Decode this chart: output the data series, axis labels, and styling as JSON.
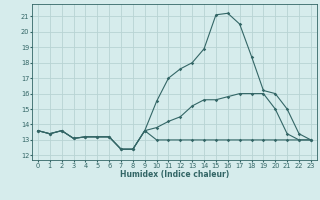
{
  "title": "",
  "xlabel": "Humidex (Indice chaleur)",
  "ylabel": "",
  "background_color": "#d6ecec",
  "grid_color": "#b8d4d4",
  "line_color": "#336666",
  "xlim": [
    -0.5,
    23.5
  ],
  "ylim": [
    11.7,
    21.8
  ],
  "yticks": [
    12,
    13,
    14,
    15,
    16,
    17,
    18,
    19,
    20,
    21
  ],
  "xticks": [
    0,
    1,
    2,
    3,
    4,
    5,
    6,
    7,
    8,
    9,
    10,
    11,
    12,
    13,
    14,
    15,
    16,
    17,
    18,
    19,
    20,
    21,
    22,
    23
  ],
  "line1_x": [
    0,
    1,
    2,
    3,
    4,
    5,
    6,
    7,
    8,
    9,
    10,
    11,
    12,
    13,
    14,
    15,
    16,
    17,
    18,
    19,
    20,
    21,
    22,
    23
  ],
  "line1_y": [
    13.6,
    13.4,
    13.6,
    13.1,
    13.2,
    13.2,
    13.2,
    12.4,
    12.4,
    13.6,
    13.0,
    13.0,
    13.0,
    13.0,
    13.0,
    13.0,
    13.0,
    13.0,
    13.0,
    13.0,
    13.0,
    13.0,
    13.0,
    13.0
  ],
  "line2_x": [
    0,
    1,
    2,
    3,
    4,
    5,
    6,
    7,
    8,
    9,
    10,
    11,
    12,
    13,
    14,
    15,
    16,
    17,
    18,
    19,
    20,
    21,
    22,
    23
  ],
  "line2_y": [
    13.6,
    13.4,
    13.6,
    13.1,
    13.2,
    13.2,
    13.2,
    12.4,
    12.4,
    13.6,
    13.8,
    14.2,
    14.5,
    15.2,
    15.6,
    15.6,
    15.8,
    16.0,
    16.0,
    16.0,
    15.0,
    13.4,
    13.0,
    13.0
  ],
  "line3_x": [
    0,
    1,
    2,
    3,
    4,
    5,
    6,
    7,
    8,
    9,
    10,
    11,
    12,
    13,
    14,
    15,
    16,
    17,
    18,
    19,
    20,
    21,
    22,
    23
  ],
  "line3_y": [
    13.6,
    13.4,
    13.6,
    13.1,
    13.2,
    13.2,
    13.2,
    12.4,
    12.4,
    13.6,
    15.5,
    17.0,
    17.6,
    18.0,
    18.9,
    21.1,
    21.2,
    20.5,
    18.4,
    16.2,
    16.0,
    15.0,
    13.4,
    13.0
  ],
  "xlabel_fontsize": 5.5,
  "tick_fontsize": 4.8,
  "linewidth": 0.8,
  "markersize": 1.8
}
